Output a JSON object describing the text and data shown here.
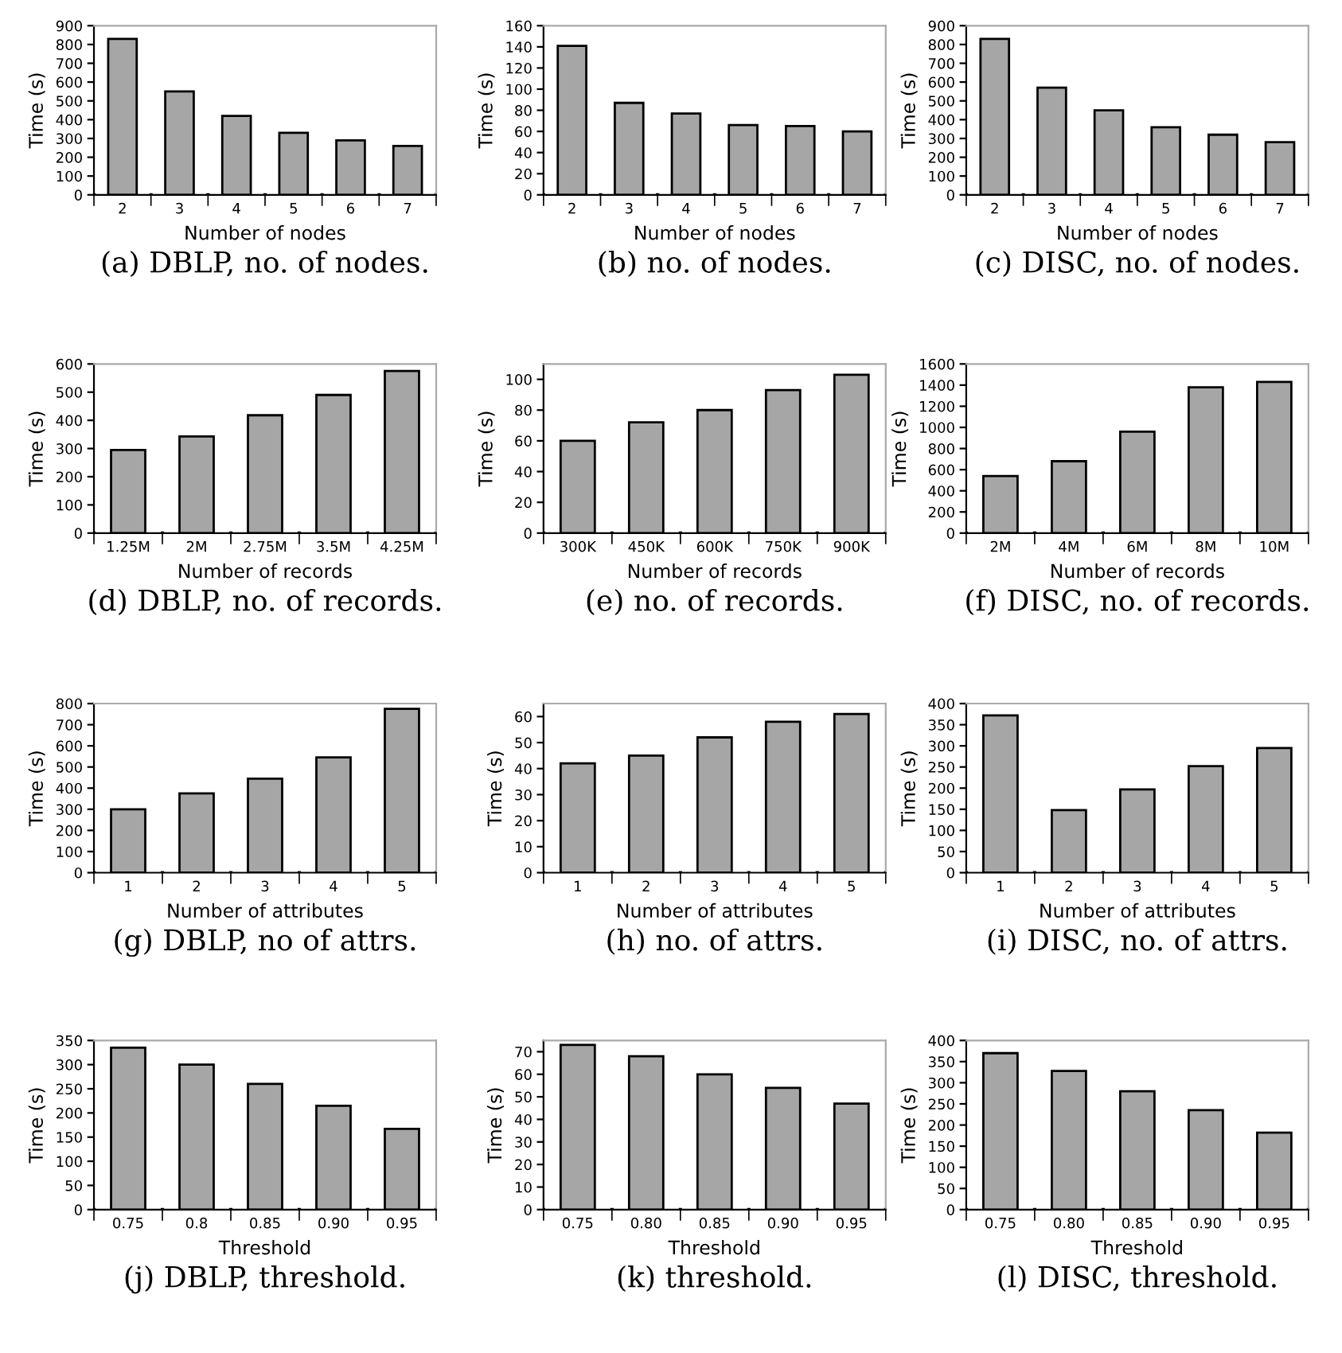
{
  "chart_data": [
    {
      "type": "bar",
      "categories": [
        "2",
        "3",
        "4",
        "5",
        "6",
        "7"
      ],
      "values": [
        830,
        550,
        420,
        330,
        290,
        260
      ],
      "color": "#a6a6a6",
      "ylim": [
        0,
        900
      ],
      "yticks": [
        0,
        100,
        200,
        300,
        400,
        500,
        600,
        700,
        800,
        900
      ],
      "xlabel": "Number of nodes",
      "ylabel": "Time (s)",
      "annotations": [
        "(a) DBLP, no. of nodes."
      ]
    },
    {
      "type": "bar",
      "categories": [
        "2",
        "3",
        "4",
        "5",
        "6",
        "7"
      ],
      "values": [
        141,
        87,
        77,
        66,
        65,
        60
      ],
      "color": "#a6a6a6",
      "ylim": [
        0,
        160
      ],
      "yticks": [
        0,
        20,
        40,
        60,
        80,
        100,
        120,
        140,
        160
      ],
      "xlabel": "Number of nodes",
      "ylabel": "Time (s)",
      "annotations": [
        "(b) no. of nodes."
      ]
    },
    {
      "type": "bar",
      "categories": [
        "2",
        "3",
        "4",
        "5",
        "6",
        "7"
      ],
      "values": [
        830,
        570,
        450,
        360,
        320,
        280
      ],
      "color": "#a6a6a6",
      "ylim": [
        0,
        900
      ],
      "yticks": [
        0,
        100,
        200,
        300,
        400,
        500,
        600,
        700,
        800,
        900
      ],
      "xlabel": "Number of nodes",
      "ylabel": "Time (s)",
      "annotations": [
        "(c) DISC, no. of nodes."
      ]
    },
    {
      "type": "bar",
      "categories": [
        "1.25M",
        "2M",
        "2.75M",
        "3.5M",
        "4.25M"
      ],
      "values": [
        295,
        343,
        418,
        490,
        575
      ],
      "color": "#a6a6a6",
      "ylim": [
        0,
        600
      ],
      "yticks": [
        0,
        100,
        200,
        300,
        400,
        500,
        600
      ],
      "xlabel": "Number of records",
      "ylabel": "Time (s)",
      "annotations": [
        "(d) DBLP, no. of records."
      ]
    },
    {
      "type": "bar",
      "categories": [
        "300K",
        "450K",
        "600K",
        "750K",
        "900K"
      ],
      "values": [
        60,
        72,
        80,
        93,
        103
      ],
      "color": "#a6a6a6",
      "ylim": [
        0,
        110
      ],
      "yticks": [
        0,
        20,
        40,
        60,
        80,
        100
      ],
      "xlabel": "Number of records",
      "ylabel": "Time (s)",
      "annotations": [
        "(e) no. of records."
      ]
    },
    {
      "type": "bar",
      "categories": [
        "2M",
        "4M",
        "6M",
        "8M",
        "10M"
      ],
      "values": [
        540,
        680,
        960,
        1380,
        1430
      ],
      "color": "#a6a6a6",
      "ylim": [
        0,
        1600
      ],
      "yticks": [
        0,
        200,
        400,
        600,
        800,
        1000,
        1200,
        1400,
        1600
      ],
      "xlabel": "Number of records",
      "ylabel": "Time (s)",
      "annotations": [
        "(f) DISC, no. of records."
      ]
    },
    {
      "type": "bar",
      "categories": [
        "1",
        "2",
        "3",
        "4",
        "5"
      ],
      "values": [
        300,
        375,
        445,
        545,
        775
      ],
      "color": "#a6a6a6",
      "ylim": [
        0,
        800
      ],
      "yticks": [
        0,
        100,
        200,
        300,
        400,
        500,
        600,
        700,
        800
      ],
      "xlabel": "Number of attributes",
      "ylabel": "Time (s)",
      "annotations": [
        "(g) DBLP, no of attrs."
      ]
    },
    {
      "type": "bar",
      "categories": [
        "1",
        "2",
        "3",
        "4",
        "5"
      ],
      "values": [
        42,
        45,
        52,
        58,
        61
      ],
      "color": "#a6a6a6",
      "ylim": [
        0,
        65
      ],
      "yticks": [
        0,
        10,
        20,
        30,
        40,
        50,
        60
      ],
      "xlabel": "Number of attributes",
      "ylabel": "Time (s)",
      "annotations": [
        "(h) no. of attrs."
      ]
    },
    {
      "type": "bar",
      "categories": [
        "1",
        "2",
        "3",
        "4",
        "5"
      ],
      "values": [
        372,
        148,
        197,
        252,
        295
      ],
      "color": "#a6a6a6",
      "ylim": [
        0,
        400
      ],
      "yticks": [
        0,
        50,
        100,
        150,
        200,
        250,
        300,
        350,
        400
      ],
      "xlabel": "Number of attributes",
      "ylabel": "Time (s)",
      "annotations": [
        "(i) DISC, no. of attrs."
      ]
    },
    {
      "type": "bar",
      "categories": [
        "0.75",
        "0.8",
        "0.85",
        "0.90",
        "0.95"
      ],
      "values": [
        335,
        300,
        260,
        215,
        167
      ],
      "color": "#a6a6a6",
      "ylim": [
        0,
        350
      ],
      "yticks": [
        0,
        50,
        100,
        150,
        200,
        250,
        300,
        350
      ],
      "xlabel": "Threshold",
      "ylabel": "Time (s)",
      "annotations": [
        "(j) DBLP, threshold."
      ]
    },
    {
      "type": "bar",
      "categories": [
        "0.75",
        "0.80",
        "0.85",
        "0.90",
        "0.95"
      ],
      "values": [
        73,
        68,
        60,
        54,
        47
      ],
      "color": "#a6a6a6",
      "ylim": [
        0,
        75
      ],
      "yticks": [
        0,
        10,
        20,
        30,
        40,
        50,
        60,
        70
      ],
      "xlabel": "Threshold",
      "ylabel": "Time (s)",
      "annotations": [
        "(k) threshold."
      ]
    },
    {
      "type": "bar",
      "categories": [
        "0.75",
        "0.80",
        "0.85",
        "0.90",
        "0.95"
      ],
      "values": [
        370,
        328,
        280,
        235,
        182
      ],
      "color": "#a6a6a6",
      "ylim": [
        0,
        400
      ],
      "yticks": [
        0,
        50,
        100,
        150,
        200,
        250,
        300,
        350,
        400
      ],
      "xlabel": "Threshold",
      "ylabel": "Time (s)",
      "annotations": [
        "(l) DISC, threshold."
      ]
    }
  ]
}
